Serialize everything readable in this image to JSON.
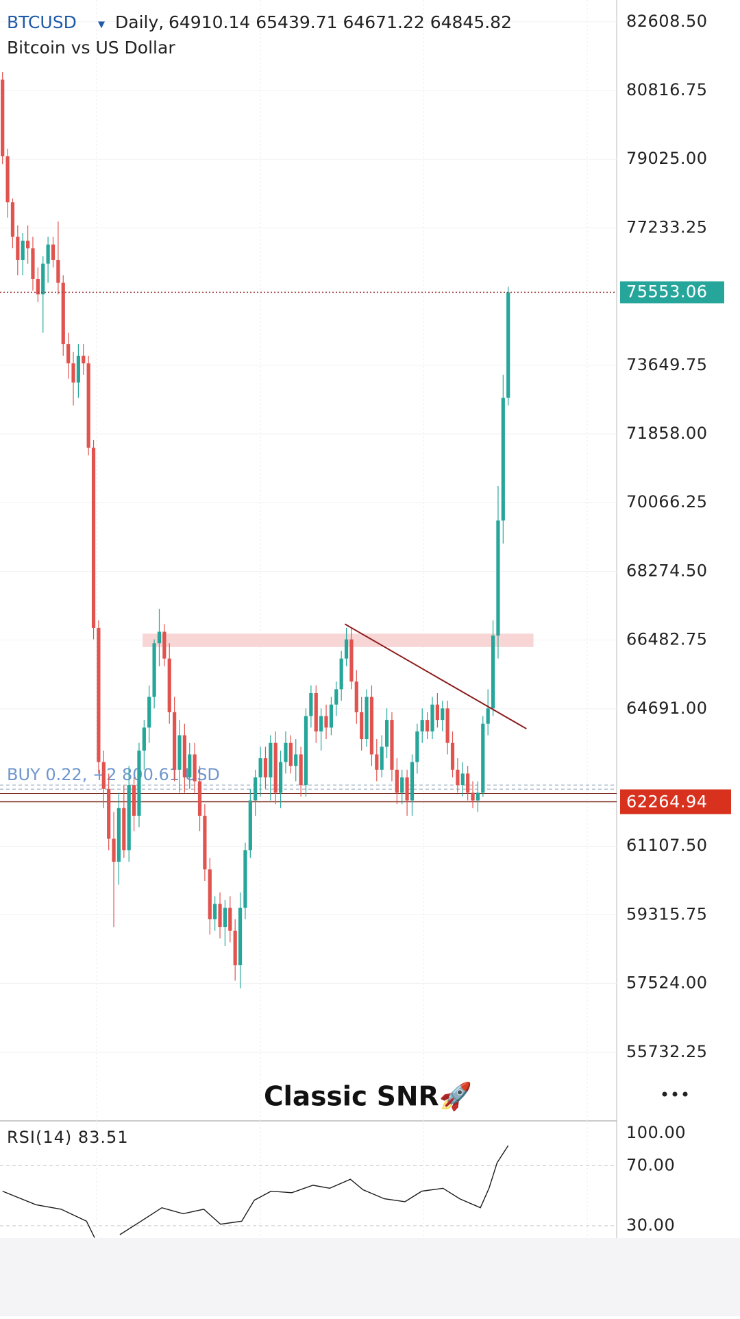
{
  "chart_data": {
    "type": "candlestick",
    "symbol": "BTCUSD",
    "dropdown": "▾",
    "interval": "Daily,",
    "ohlc_header": "64910.14 65439.71 64671.22 64845.82",
    "subtitle": "Bitcoin vs US Dollar",
    "caption": "Classic SNR🚀",
    "up_color": "#26a69a",
    "down_color": "#e0534f",
    "grid": true,
    "ylim": [
      53941,
      83178
    ],
    "yticks": [
      {
        "value": 82608.5,
        "label": "82608.50"
      },
      80816.75,
      {
        "value": 79025,
        "label": "79025.00"
      },
      77233.25,
      73649.75,
      {
        "value": 71858,
        "label": "71858.00"
      },
      70066.25,
      {
        "value": 68274.5,
        "label": "68274.50"
      },
      66482.75,
      {
        "value": 64691,
        "label": "64691.00"
      },
      {
        "value": 61107.5,
        "label": "61107.50"
      },
      59315.75,
      {
        "value": 57524,
        "label": "57524.00"
      },
      55732.25
    ],
    "candles": [
      [
        81100,
        81300,
        78900,
        79100
      ],
      [
        79100,
        79300,
        77500,
        77900
      ],
      [
        77900,
        78000,
        76700,
        77000
      ],
      [
        77000,
        77300,
        76000,
        76400
      ],
      [
        76400,
        77100,
        76000,
        76900
      ],
      [
        76900,
        77300,
        76300,
        76700
      ],
      [
        76700,
        77000,
        75600,
        75900
      ],
      [
        75900,
        76200,
        75300,
        75500
      ],
      [
        75500,
        76500,
        74500,
        76300
      ],
      [
        76300,
        77000,
        75800,
        76800
      ],
      [
        76800,
        77000,
        76200,
        76400
      ],
      [
        76400,
        77400,
        75500,
        75800
      ],
      [
        75800,
        76000,
        73900,
        74200
      ],
      [
        74200,
        74500,
        73300,
        73700
      ],
      [
        73700,
        74000,
        72600,
        73200
      ],
      [
        73200,
        74200,
        72800,
        73900
      ],
      [
        73900,
        74200,
        73400,
        73700
      ],
      [
        73700,
        73900,
        71300,
        71500
      ],
      [
        71500,
        71700,
        66500,
        66800
      ],
      [
        66800,
        67000,
        63000,
        63300
      ],
      [
        63300,
        63600,
        62100,
        62600
      ],
      [
        62600,
        63000,
        61000,
        61300
      ],
      [
        61300,
        62000,
        59000,
        60700
      ],
      [
        60700,
        62500,
        60100,
        62100
      ],
      [
        62100,
        62700,
        60800,
        61000
      ],
      [
        61000,
        63200,
        60700,
        62700
      ],
      [
        62700,
        62900,
        61500,
        61900
      ],
      [
        61900,
        63800,
        61600,
        63600
      ],
      [
        63600,
        64400,
        63100,
        64200
      ],
      [
        64200,
        65300,
        63800,
        65000
      ],
      [
        65000,
        66500,
        64700,
        66400
      ],
      [
        66400,
        67300,
        65800,
        66700
      ],
      [
        66700,
        66900,
        65800,
        66000
      ],
      [
        66000,
        66400,
        64300,
        64600
      ],
      [
        64600,
        65000,
        62800,
        63100
      ],
      [
        63100,
        64400,
        62500,
        64000
      ],
      [
        64000,
        64300,
        62500,
        62900
      ],
      [
        62900,
        63800,
        62600,
        63500
      ],
      [
        63500,
        63800,
        62500,
        62800
      ],
      [
        62800,
        63200,
        61500,
        61900
      ],
      [
        61900,
        62200,
        60200,
        60500
      ],
      [
        60500,
        60800,
        58800,
        59200
      ],
      [
        59200,
        59800,
        58900,
        59600
      ],
      [
        59600,
        59900,
        58700,
        59000
      ],
      [
        59000,
        59700,
        58500,
        59500
      ],
      [
        59500,
        59800,
        58600,
        58900
      ],
      [
        58900,
        59200,
        57600,
        58000
      ],
      [
        58000,
        59900,
        57400,
        59500
      ],
      [
        59500,
        61200,
        59200,
        61000
      ],
      [
        61000,
        62600,
        60800,
        62300
      ],
      [
        62300,
        63100,
        61900,
        62900
      ],
      [
        62900,
        63700,
        62400,
        63400
      ],
      [
        63400,
        63700,
        62600,
        62900
      ],
      [
        62900,
        64000,
        62300,
        63800
      ],
      [
        63800,
        64100,
        62200,
        62500
      ],
      [
        62500,
        63600,
        62100,
        63300
      ],
      [
        63300,
        64100,
        63000,
        63800
      ],
      [
        63800,
        64000,
        63000,
        63200
      ],
      [
        63200,
        63900,
        62800,
        63500
      ],
      [
        63500,
        63700,
        62400,
        62700
      ],
      [
        62700,
        64700,
        62400,
        64500
      ],
      [
        64500,
        65300,
        64200,
        65100
      ],
      [
        65100,
        65300,
        63800,
        64100
      ],
      [
        64100,
        64700,
        63600,
        64500
      ],
      [
        64500,
        64800,
        63900,
        64200
      ],
      [
        64200,
        65000,
        64000,
        64800
      ],
      [
        64800,
        65400,
        64500,
        65200
      ],
      [
        65200,
        66200,
        64900,
        66000
      ],
      [
        66000,
        66800,
        65800,
        66500
      ],
      [
        66500,
        66800,
        65200,
        65400
      ],
      [
        65400,
        65700,
        64300,
        64600
      ],
      [
        64600,
        65000,
        63600,
        63900
      ],
      [
        63900,
        65200,
        63700,
        65000
      ],
      [
        65000,
        65300,
        63200,
        63500
      ],
      [
        63500,
        63900,
        62800,
        63100
      ],
      [
        63100,
        64000,
        62900,
        63700
      ],
      [
        63700,
        64700,
        63400,
        64400
      ],
      [
        64400,
        64600,
        62800,
        63100
      ],
      [
        63100,
        63400,
        62200,
        62500
      ],
      [
        62500,
        63100,
        62200,
        62900
      ],
      [
        62900,
        63100,
        61900,
        62300
      ],
      [
        62300,
        63500,
        61900,
        63300
      ],
      [
        63300,
        64300,
        63000,
        64100
      ],
      [
        64100,
        64700,
        63800,
        64400
      ],
      [
        64400,
        64600,
        63900,
        64100
      ],
      [
        64100,
        65000,
        63900,
        64800
      ],
      [
        64800,
        65100,
        64200,
        64400
      ],
      [
        64400,
        64900,
        64100,
        64700
      ],
      [
        64700,
        64900,
        63500,
        63800
      ],
      [
        63800,
        64100,
        62900,
        63100
      ],
      [
        63100,
        63400,
        62500,
        62700
      ],
      [
        62700,
        63300,
        62400,
        63000
      ],
      [
        63000,
        63200,
        62300,
        62500
      ],
      [
        62500,
        62800,
        62100,
        62300
      ],
      [
        62300,
        62800,
        62000,
        62500
      ],
      [
        62500,
        64500,
        62400,
        64300
      ],
      [
        64300,
        65200,
        64000,
        64700
      ],
      [
        64700,
        67000,
        64500,
        66600
      ],
      [
        66600,
        70500,
        66000,
        69600
      ],
      [
        69600,
        73400,
        69000,
        72800
      ],
      [
        72800,
        75700,
        72600,
        75553.06
      ]
    ],
    "last_price": {
      "value": 75553.06,
      "color": "#26a69a"
    },
    "position_price": {
      "value": 62264.94,
      "color": "#d8321f"
    },
    "order": {
      "label": "BUY 0.22, +2 800.61 USD",
      "value": 62700
    },
    "zone": {
      "x": [
        27.7,
        105
      ],
      "y": [
        66300,
        66650
      ],
      "color": "#f7cfcf"
    },
    "trendline": {
      "x": [
        67.7,
        103.6
      ],
      "y": [
        66900,
        64170
      ],
      "color": "#8b1c1c"
    },
    "rsi": {
      "label": "RSI(14) 83.51",
      "color": "#1a1a1a",
      "ylim": [
        21.7,
        100
      ],
      "yticks": [
        {
          "value": 100,
          "label": "100.00"
        },
        {
          "value": 70,
          "label": "70.00"
        },
        {
          "value": 30,
          "label": "30.00"
        }
      ],
      "x": [
        0,
        6.6,
        11.6,
        16.6,
        18.2,
        20,
        23.2,
        27.4,
        31.5,
        35.7,
        39.8,
        43.1,
        47.3,
        49.8,
        53.1,
        57.2,
        61.4,
        64.7,
        68.8,
        71.3,
        75.5,
        79.6,
        82.9,
        87.1,
        90.4,
        94.5,
        96.2,
        97.8,
        100
      ],
      "values": [
        53,
        44,
        41,
        33,
        22,
        null,
        24,
        33,
        42,
        38,
        41,
        31,
        33,
        47,
        53,
        52,
        57,
        55,
        61,
        54,
        48,
        46,
        53,
        55,
        48,
        42,
        55,
        72,
        83.51
      ]
    }
  }
}
